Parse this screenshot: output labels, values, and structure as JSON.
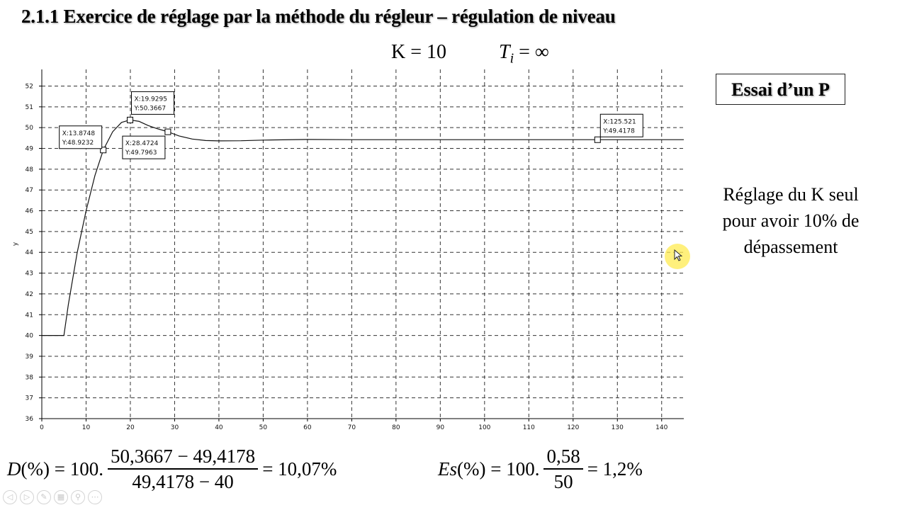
{
  "slide": {
    "title": "2.1.1 Exercice de réglage par la méthode du régleur – régulation de niveau",
    "param_k": "K = 10",
    "param_ti_symbol": "T",
    "param_ti_sub": "i",
    "param_ti_value": " = ∞",
    "essai_box": "Essai d’un P",
    "note_lines": [
      "Réglage du K seul",
      "pour avoir 10% de",
      "dépassement"
    ],
    "formula_d": {
      "lhs_var": "D",
      "lhs_rest": "(%) = 100.",
      "numerator": "50,3667 − 49,4178",
      "denominator": "49,4178 − 40",
      "result": "= 10,07%"
    },
    "formula_es": {
      "lhs_var": "Es",
      "lhs_rest": "(%) = 100.",
      "numerator": "0,58",
      "denominator": "50",
      "result": "= 1,2%"
    },
    "nav_icons": [
      "back-icon",
      "forward-icon",
      "pen-icon",
      "slides-icon",
      "zoom-icon",
      "more-icon"
    ],
    "nav_glyphs": [
      "◁",
      "▷",
      "✎",
      "▦",
      "⚲",
      "⋯"
    ]
  },
  "chart_data": {
    "type": "line",
    "title": "",
    "xlabel": "",
    "ylabel": "y",
    "xlim": [
      0,
      145
    ],
    "ylim": [
      36,
      52.8
    ],
    "x_ticks": [
      0,
      10,
      20,
      30,
      40,
      50,
      60,
      70,
      80,
      90,
      100,
      110,
      120,
      130,
      140
    ],
    "y_ticks": [
      36,
      37,
      38,
      39,
      40,
      41,
      42,
      43,
      44,
      45,
      46,
      47,
      48,
      49,
      50,
      51,
      52
    ],
    "grid": true,
    "line_color": "#111111",
    "series": [
      {
        "x": [
          0,
          5,
          6,
          8,
          10,
          12,
          13.87,
          16,
          18,
          19.93,
          22,
          24,
          26,
          28.47,
          31,
          34,
          37,
          40,
          45,
          50,
          60,
          70,
          80,
          100,
          125.52,
          145
        ],
        "y": [
          40,
          40,
          41.5,
          44,
          46,
          47.7,
          48.92,
          49.8,
          50.25,
          50.37,
          50.3,
          50.1,
          49.95,
          49.8,
          49.6,
          49.45,
          49.38,
          49.36,
          49.37,
          49.4,
          49.43,
          49.42,
          49.42,
          49.42,
          49.42,
          49.42
        ]
      }
    ],
    "datatips": [
      {
        "x": 13.8748,
        "y": 48.9232,
        "label_x": "X:13.8748",
        "label_y": "Y:48.9232",
        "side": "left"
      },
      {
        "x": 19.9295,
        "y": 50.3667,
        "label_x": "X:19.9295",
        "label_y": "Y:50.3667",
        "side": "above"
      },
      {
        "x": 28.4724,
        "y": 49.7963,
        "label_x": "X:28.4724",
        "label_y": "Y:49.7963",
        "side": "below-left"
      },
      {
        "x": 125.521,
        "y": 49.4178,
        "label_x": "X:125.521",
        "label_y": "Y:49.4178",
        "side": "above-right"
      }
    ]
  }
}
